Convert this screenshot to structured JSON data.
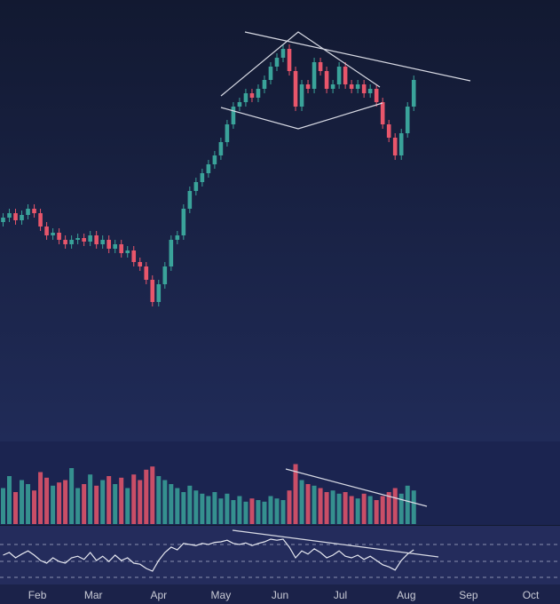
{
  "chart_data": [
    {
      "type": "candlestick",
      "x": [
        1.45,
        1.55,
        1.65,
        1.75,
        1.85,
        1.95,
        2.05,
        2.15,
        2.25,
        2.35,
        2.45,
        2.55,
        2.65,
        2.75,
        2.85,
        2.95,
        3.05,
        3.15,
        3.25,
        3.35,
        3.45,
        3.55,
        3.65,
        3.75,
        3.85,
        3.95,
        4.05,
        4.15,
        4.25,
        4.35,
        4.45,
        4.55,
        4.65,
        4.75,
        4.85,
        4.95,
        5.05,
        5.15,
        5.25,
        5.35,
        5.45,
        5.55,
        5.65,
        5.75,
        5.85,
        5.95,
        6.05,
        6.15,
        6.25,
        6.35,
        6.45,
        6.55,
        6.65,
        6.75,
        6.85,
        6.95,
        7.05,
        7.15,
        7.25,
        7.35,
        7.45,
        7.55,
        7.65,
        7.75,
        7.85,
        7.95,
        8.05
      ],
      "open": [
        50,
        51,
        52,
        50.4,
        51.6,
        53,
        52,
        49,
        47,
        47.6,
        46,
        45,
        46,
        46.4,
        45.6,
        47,
        45,
        46,
        44,
        45,
        43,
        43.6,
        41,
        40,
        37,
        32,
        36,
        40,
        46,
        47,
        53,
        57,
        59,
        61,
        63,
        65,
        68,
        72,
        76,
        77,
        79,
        78,
        80,
        82,
        85,
        87,
        89,
        84,
        76,
        81,
        80,
        86,
        84,
        80,
        81,
        85,
        81,
        80,
        81,
        79,
        80,
        77,
        72,
        69,
        65,
        70,
        76
      ],
      "high": [
        52,
        53,
        53,
        52.6,
        54,
        54,
        53,
        50,
        48.6,
        48.6,
        47,
        47,
        47.4,
        47.4,
        48,
        48,
        47,
        47,
        46,
        46,
        44.6,
        44.6,
        42,
        41,
        38,
        37,
        41,
        47,
        48,
        54,
        58,
        60,
        62,
        64,
        66,
        69,
        73,
        77,
        78,
        80,
        80,
        81,
        83,
        86,
        88,
        90,
        90,
        85,
        82,
        82,
        87,
        87,
        85,
        82,
        86,
        86,
        82,
        82,
        82,
        81,
        81,
        78,
        73,
        70,
        71,
        77,
        83
      ],
      "low": [
        49,
        50,
        49.4,
        49.4,
        50.6,
        51,
        48,
        46,
        46,
        45,
        44,
        44,
        45,
        44.6,
        44.6,
        44,
        44,
        43,
        43,
        42,
        42,
        40,
        39,
        36,
        31,
        31,
        35,
        39,
        45,
        46,
        52,
        56,
        58,
        60,
        62,
        64,
        67,
        71,
        75,
        76,
        77,
        77,
        79,
        81,
        84,
        86,
        83,
        75,
        75,
        79,
        79,
        83,
        79,
        79,
        80,
        80,
        79,
        79,
        78,
        78,
        76,
        71,
        68,
        64,
        64,
        69,
        75
      ],
      "close": [
        51,
        52,
        50.4,
        51.6,
        53,
        52,
        49,
        47,
        47.6,
        46,
        45,
        46,
        46.4,
        45.6,
        47,
        45,
        46,
        44,
        45,
        43,
        43.6,
        41,
        40,
        37,
        32,
        36,
        40,
        46,
        47,
        53,
        57,
        59,
        61,
        63,
        65,
        68,
        72,
        76,
        77,
        79,
        78,
        80,
        82,
        85,
        87,
        89,
        84,
        76,
        81,
        80,
        86,
        84,
        80,
        81,
        85,
        81,
        80,
        81,
        79,
        80,
        77,
        72,
        69,
        65,
        70,
        76,
        82
      ],
      "up_color": "#3aa39a",
      "down_color": "#e8566b",
      "xlim": [
        1.4,
        10.4
      ],
      "ylim": [
        0,
        100
      ]
    },
    {
      "type": "bar",
      "x": [
        1.45,
        1.55,
        1.65,
        1.75,
        1.85,
        1.95,
        2.05,
        2.15,
        2.25,
        2.35,
        2.45,
        2.55,
        2.65,
        2.75,
        2.85,
        2.95,
        3.05,
        3.15,
        3.25,
        3.35,
        3.45,
        3.55,
        3.65,
        3.75,
        3.85,
        3.95,
        4.05,
        4.15,
        4.25,
        4.35,
        4.45,
        4.55,
        4.65,
        4.75,
        4.85,
        4.95,
        5.05,
        5.15,
        5.25,
        5.35,
        5.45,
        5.55,
        5.65,
        5.75,
        5.85,
        5.95,
        6.05,
        6.15,
        6.25,
        6.35,
        6.45,
        6.55,
        6.65,
        6.75,
        6.85,
        6.95,
        7.05,
        7.15,
        7.25,
        7.35,
        7.45,
        7.55,
        7.65,
        7.75,
        7.85,
        7.95,
        8.05
      ],
      "values": [
        45,
        60,
        40,
        55,
        50,
        42,
        65,
        58,
        48,
        52,
        55,
        70,
        45,
        50,
        62,
        48,
        55,
        60,
        50,
        58,
        45,
        62,
        55,
        68,
        72,
        60,
        55,
        50,
        45,
        40,
        48,
        42,
        38,
        35,
        40,
        32,
        38,
        30,
        35,
        28,
        32,
        30,
        28,
        35,
        32,
        30,
        42,
        75,
        55,
        50,
        48,
        45,
        40,
        42,
        38,
        40,
        35,
        32,
        38,
        35,
        30,
        35,
        40,
        45,
        38,
        48,
        42
      ],
      "xlim": [
        1.4,
        10.4
      ],
      "ylim": [
        0,
        100
      ]
    },
    {
      "type": "line",
      "x": [
        1.45,
        1.55,
        1.65,
        1.75,
        1.85,
        1.95,
        2.05,
        2.15,
        2.25,
        2.35,
        2.45,
        2.55,
        2.65,
        2.75,
        2.85,
        2.95,
        3.05,
        3.15,
        3.25,
        3.35,
        3.45,
        3.55,
        3.65,
        3.75,
        3.85,
        3.95,
        4.05,
        4.15,
        4.25,
        4.35,
        4.45,
        4.55,
        4.65,
        4.75,
        4.85,
        4.95,
        5.05,
        5.15,
        5.25,
        5.35,
        5.45,
        5.55,
        5.65,
        5.75,
        5.85,
        5.95,
        6.05,
        6.15,
        6.25,
        6.35,
        6.45,
        6.55,
        6.65,
        6.75,
        6.85,
        6.95,
        7.05,
        7.15,
        7.25,
        7.35,
        7.45,
        7.55,
        7.65,
        7.75,
        7.85,
        7.95,
        8.05
      ],
      "values": [
        50,
        55,
        45,
        52,
        58,
        50,
        40,
        35,
        45,
        38,
        35,
        45,
        48,
        42,
        55,
        40,
        48,
        38,
        50,
        40,
        45,
        35,
        33,
        25,
        20,
        40,
        55,
        65,
        60,
        72,
        70,
        68,
        72,
        70,
        74,
        75,
        78,
        72,
        70,
        73,
        68,
        72,
        75,
        80,
        78,
        80,
        65,
        45,
        58,
        52,
        62,
        55,
        45,
        50,
        58,
        48,
        45,
        50,
        42,
        48,
        40,
        32,
        28,
        22,
        40,
        52,
        60
      ],
      "color": "#e6e8f0",
      "xlim": [
        1.4,
        10.4
      ],
      "ylim": [
        0,
        100
      ],
      "xticks": [
        {
          "value": 2,
          "label": "Feb"
        },
        {
          "value": 2.9,
          "label": "Mar"
        },
        {
          "value": 3.95,
          "label": "Apr"
        },
        {
          "value": 4.95,
          "label": "May"
        },
        {
          "value": 5.9,
          "label": "Jun"
        },
        {
          "value": 6.87,
          "label": "Jul"
        },
        {
          "value": 7.93,
          "label": "Aug"
        },
        {
          "value": 8.93,
          "label": "Sep"
        },
        {
          "value": 9.93,
          "label": "Oct"
        }
      ]
    }
  ]
}
